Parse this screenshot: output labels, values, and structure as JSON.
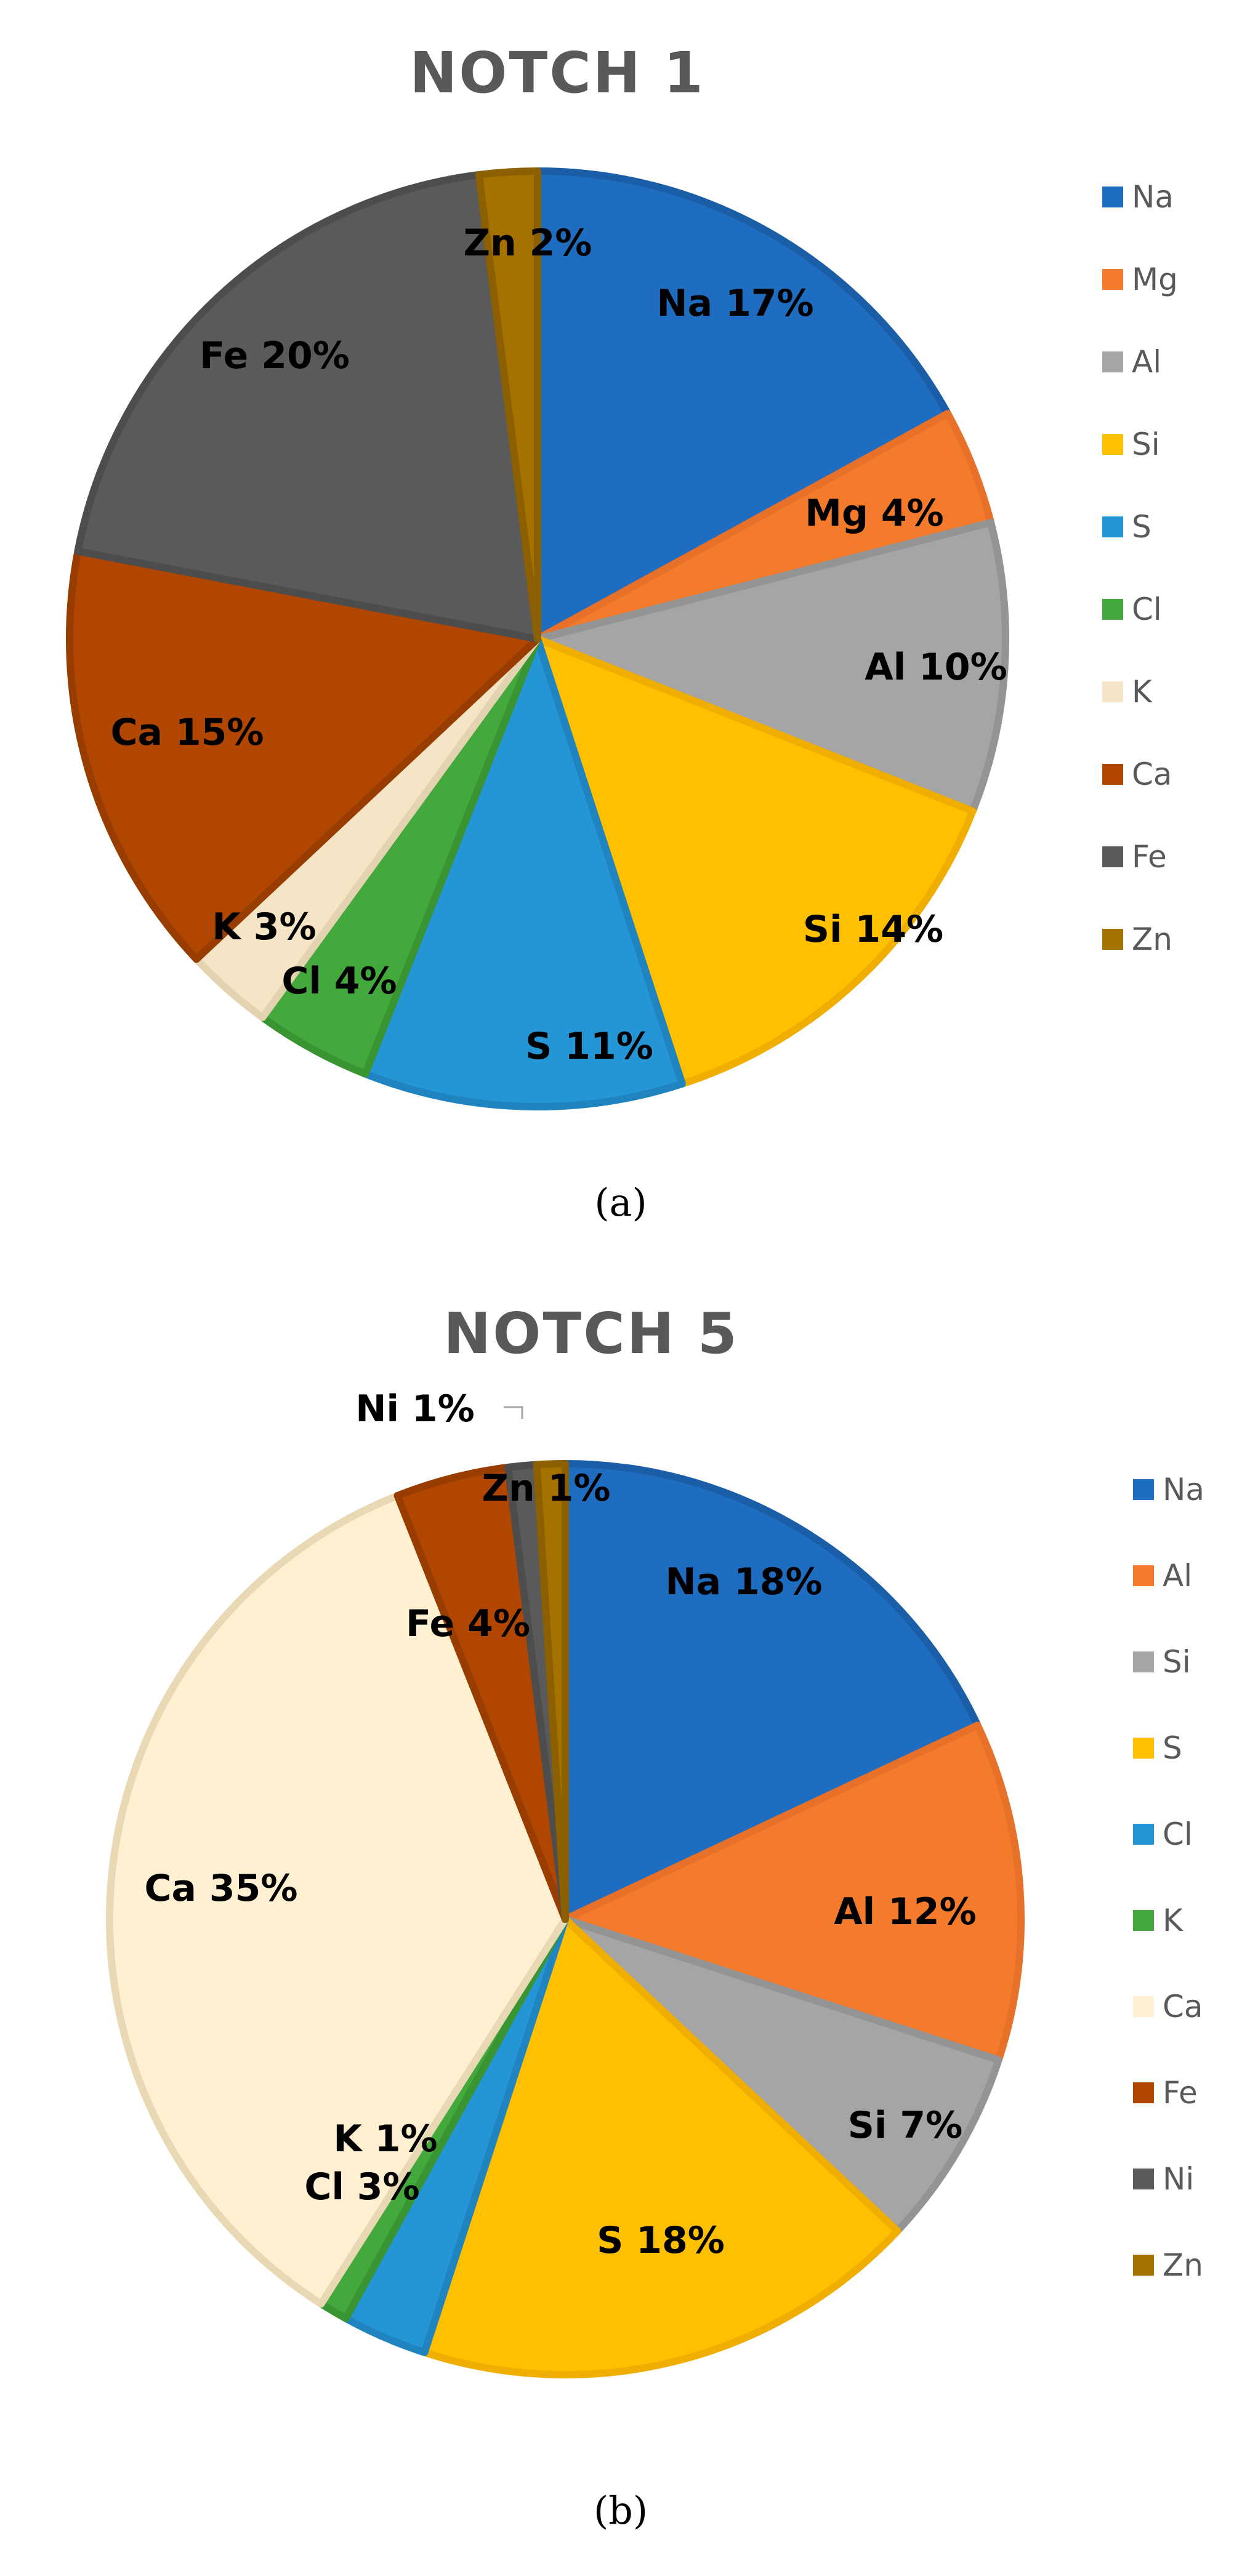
{
  "chart_data": [
    {
      "type": "pie",
      "title": "NOTCH 1",
      "caption": "(a)",
      "legend_position": "right",
      "categories": [
        "Na",
        "Mg",
        "Al",
        "Si",
        "S",
        "Cl",
        "K",
        "Ca",
        "Fe",
        "Zn"
      ],
      "values": [
        17,
        4,
        10,
        14,
        11,
        4,
        3,
        15,
        20,
        2
      ],
      "data_labels": [
        "Na 17%",
        "Mg 4%",
        "Al 10%",
        "Si 14%",
        "S 11%",
        "Cl 4%",
        "K 3%",
        "Ca 15%",
        "Fe 20%",
        "Zn 2%"
      ],
      "colors": [
        "#1F6DC1",
        "#F47B2B",
        "#A5A5A5",
        "#FFC000",
        "#2496D6",
        "#43A93C",
        "#F5E5C6",
        "#B04600",
        "#5A5A5A",
        "#A57200"
      ],
      "outline_colors": [
        "#1A5EA8",
        "#E8712A",
        "#949494",
        "#F0AF00",
        "#1F84BF",
        "#399531",
        "#E3D3B0",
        "#983C00",
        "#4D4D4D",
        "#8C6000"
      ]
    },
    {
      "type": "pie",
      "title": "NOTCH 5",
      "caption": "(b)",
      "legend_position": "right",
      "categories": [
        "Na",
        "Al",
        "Si",
        "S",
        "Cl",
        "K",
        "Ca",
        "Fe",
        "Ni",
        "Zn"
      ],
      "values": [
        18,
        12,
        7,
        18,
        3,
        1,
        35,
        4,
        1,
        1
      ],
      "data_labels": [
        "Na 18%",
        "Al 12%",
        "Si 7%",
        "S 18%",
        "Cl 3%",
        "K 1%",
        "Ca 35%",
        "Fe 4%",
        "Ni 1%",
        "Zn 1%"
      ],
      "colors": [
        "#1F6DC1",
        "#F47B2B",
        "#A5A5A5",
        "#FFC000",
        "#2496D6",
        "#43A93C",
        "#FFF0D2",
        "#B04600",
        "#5A5A5A",
        "#A57200"
      ],
      "outline_colors": [
        "#1A5EA8",
        "#E8712A",
        "#949494",
        "#F0AF00",
        "#1F84BF",
        "#399531",
        "#E8D8B4",
        "#983C00",
        "#4D4D4D",
        "#8C6000"
      ]
    }
  ]
}
